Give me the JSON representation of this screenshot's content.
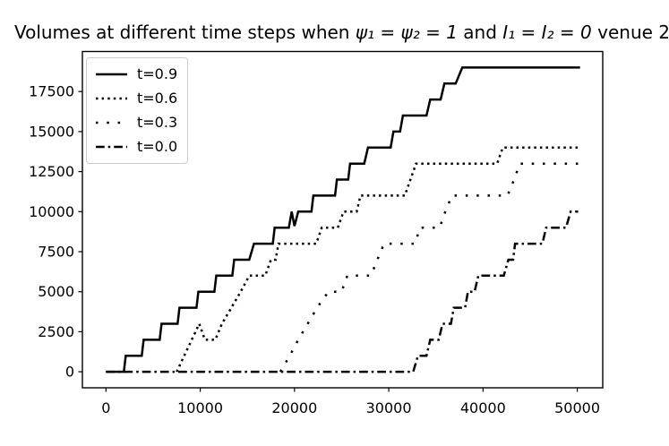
{
  "figure": {
    "title": {
      "part1": "Volumes at different time steps when ",
      "math1": "ψ₁ = ψ₂ = 1",
      "part2": " and ",
      "math2": "I₁ = I₂ = 0",
      "part3": " venue 2"
    }
  },
  "chart_data": {
    "type": "line",
    "title": "Volumes at different time steps when ψ₁ = ψ₂ = 1 and I₁ = I₂ = 0 venue 2",
    "xlabel": "",
    "ylabel": "",
    "xlim": [
      -2500,
      52700
    ],
    "ylim": [
      -1000,
      20000
    ],
    "x_ticks": [
      0,
      10000,
      20000,
      30000,
      40000,
      50000
    ],
    "y_ticks": [
      0,
      2500,
      5000,
      7500,
      10000,
      12500,
      15000,
      17500
    ],
    "grid": false,
    "legend_position": "upper left",
    "line_color": "#000000",
    "background_color": "#ffffff",
    "legend_border_color": "#cccccc",
    "series": [
      {
        "name": "t=0.9",
        "style": "solid",
        "points": [
          [
            0,
            0
          ],
          [
            1900,
            0
          ],
          [
            2100,
            1000
          ],
          [
            3800,
            1000
          ],
          [
            4000,
            2000
          ],
          [
            5700,
            2000
          ],
          [
            5900,
            3000
          ],
          [
            7600,
            3000
          ],
          [
            7800,
            4000
          ],
          [
            9600,
            4000
          ],
          [
            9800,
            5000
          ],
          [
            11500,
            5000
          ],
          [
            11700,
            6000
          ],
          [
            13400,
            6000
          ],
          [
            13600,
            7000
          ],
          [
            15200,
            7000
          ],
          [
            15700,
            8000
          ],
          [
            17700,
            8000
          ],
          [
            17900,
            9000
          ],
          [
            19400,
            9000
          ],
          [
            19700,
            10000
          ],
          [
            20000,
            9100
          ],
          [
            20400,
            10000
          ],
          [
            21800,
            10000
          ],
          [
            22000,
            11000
          ],
          [
            24300,
            11000
          ],
          [
            24500,
            12000
          ],
          [
            25700,
            12000
          ],
          [
            25900,
            13000
          ],
          [
            27400,
            13000
          ],
          [
            27800,
            14000
          ],
          [
            30200,
            14000
          ],
          [
            30500,
            15000
          ],
          [
            31200,
            15000
          ],
          [
            31500,
            16000
          ],
          [
            34000,
            16000
          ],
          [
            34400,
            17000
          ],
          [
            35500,
            17000
          ],
          [
            35900,
            18000
          ],
          [
            37100,
            18000
          ],
          [
            37800,
            19000
          ],
          [
            50300,
            19000
          ]
        ]
      },
      {
        "name": "t=0.6",
        "style": "dotted",
        "points": [
          [
            7500,
            0
          ],
          [
            9900,
            3000
          ],
          [
            10500,
            2000
          ],
          [
            11600,
            2000
          ],
          [
            12300,
            3000
          ],
          [
            13300,
            4000
          ],
          [
            14300,
            5000
          ],
          [
            15200,
            6000
          ],
          [
            16900,
            6000
          ],
          [
            17500,
            7000
          ],
          [
            18000,
            7000
          ],
          [
            18300,
            8000
          ],
          [
            22300,
            8000
          ],
          [
            22900,
            9000
          ],
          [
            24600,
            9000
          ],
          [
            25200,
            10000
          ],
          [
            26600,
            10000
          ],
          [
            27000,
            11000
          ],
          [
            31700,
            11000
          ],
          [
            32300,
            12000
          ],
          [
            32900,
            13000
          ],
          [
            41500,
            13000
          ],
          [
            42100,
            14000
          ],
          [
            50300,
            14000
          ]
        ]
      },
      {
        "name": "t=0.3",
        "style": "sparse-dotted",
        "points": [
          [
            18500,
            0
          ],
          [
            19500,
            1000
          ],
          [
            20400,
            2000
          ],
          [
            21400,
            3000
          ],
          [
            22400,
            4000
          ],
          [
            23600,
            5000
          ],
          [
            25000,
            5000
          ],
          [
            25600,
            6000
          ],
          [
            28100,
            6000
          ],
          [
            28800,
            7000
          ],
          [
            29500,
            8000
          ],
          [
            32800,
            8000
          ],
          [
            33300,
            9000
          ],
          [
            35400,
            9000
          ],
          [
            36000,
            10000
          ],
          [
            36700,
            11000
          ],
          [
            42600,
            11000
          ],
          [
            43300,
            12000
          ],
          [
            43900,
            13000
          ],
          [
            50300,
            13000
          ]
        ]
      },
      {
        "name": "t=0.0",
        "style": "dashdot",
        "points": [
          [
            0,
            0
          ],
          [
            32600,
            0
          ],
          [
            33100,
            1000
          ],
          [
            34000,
            1000
          ],
          [
            34400,
            2000
          ],
          [
            35300,
            2000
          ],
          [
            35700,
            3000
          ],
          [
            36600,
            3000
          ],
          [
            36900,
            4000
          ],
          [
            38100,
            4000
          ],
          [
            38400,
            5000
          ],
          [
            39100,
            5000
          ],
          [
            39500,
            6000
          ],
          [
            42200,
            6000
          ],
          [
            42700,
            7000
          ],
          [
            43200,
            7000
          ],
          [
            43400,
            8000
          ],
          [
            46300,
            8000
          ],
          [
            46700,
            9000
          ],
          [
            48800,
            9000
          ],
          [
            49300,
            10000
          ],
          [
            50100,
            10000
          ]
        ]
      }
    ]
  }
}
